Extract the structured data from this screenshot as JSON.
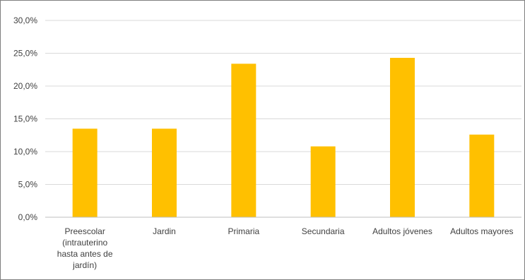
{
  "chart_data": {
    "type": "bar",
    "categories": [
      [
        "Preescolar",
        "(intrauterino",
        "hasta antes de",
        "jardín)"
      ],
      [
        "Jardin"
      ],
      [
        "Primaria"
      ],
      [
        "Secundaria"
      ],
      [
        "Adultos jóvenes"
      ],
      [
        "Adultos mayores"
      ]
    ],
    "values": [
      13.5,
      13.5,
      23.4,
      10.8,
      24.3,
      12.6
    ],
    "yticks": [
      "0,0%",
      "5,0%",
      "10,0%",
      "15,0%",
      "20,0%",
      "25,0%",
      "30,0%"
    ],
    "ylim": [
      0,
      30
    ],
    "grid": true,
    "bar_color": "#FFC000",
    "grid_color": "#D9D9D9",
    "axis_color": "#BFBFBF"
  }
}
